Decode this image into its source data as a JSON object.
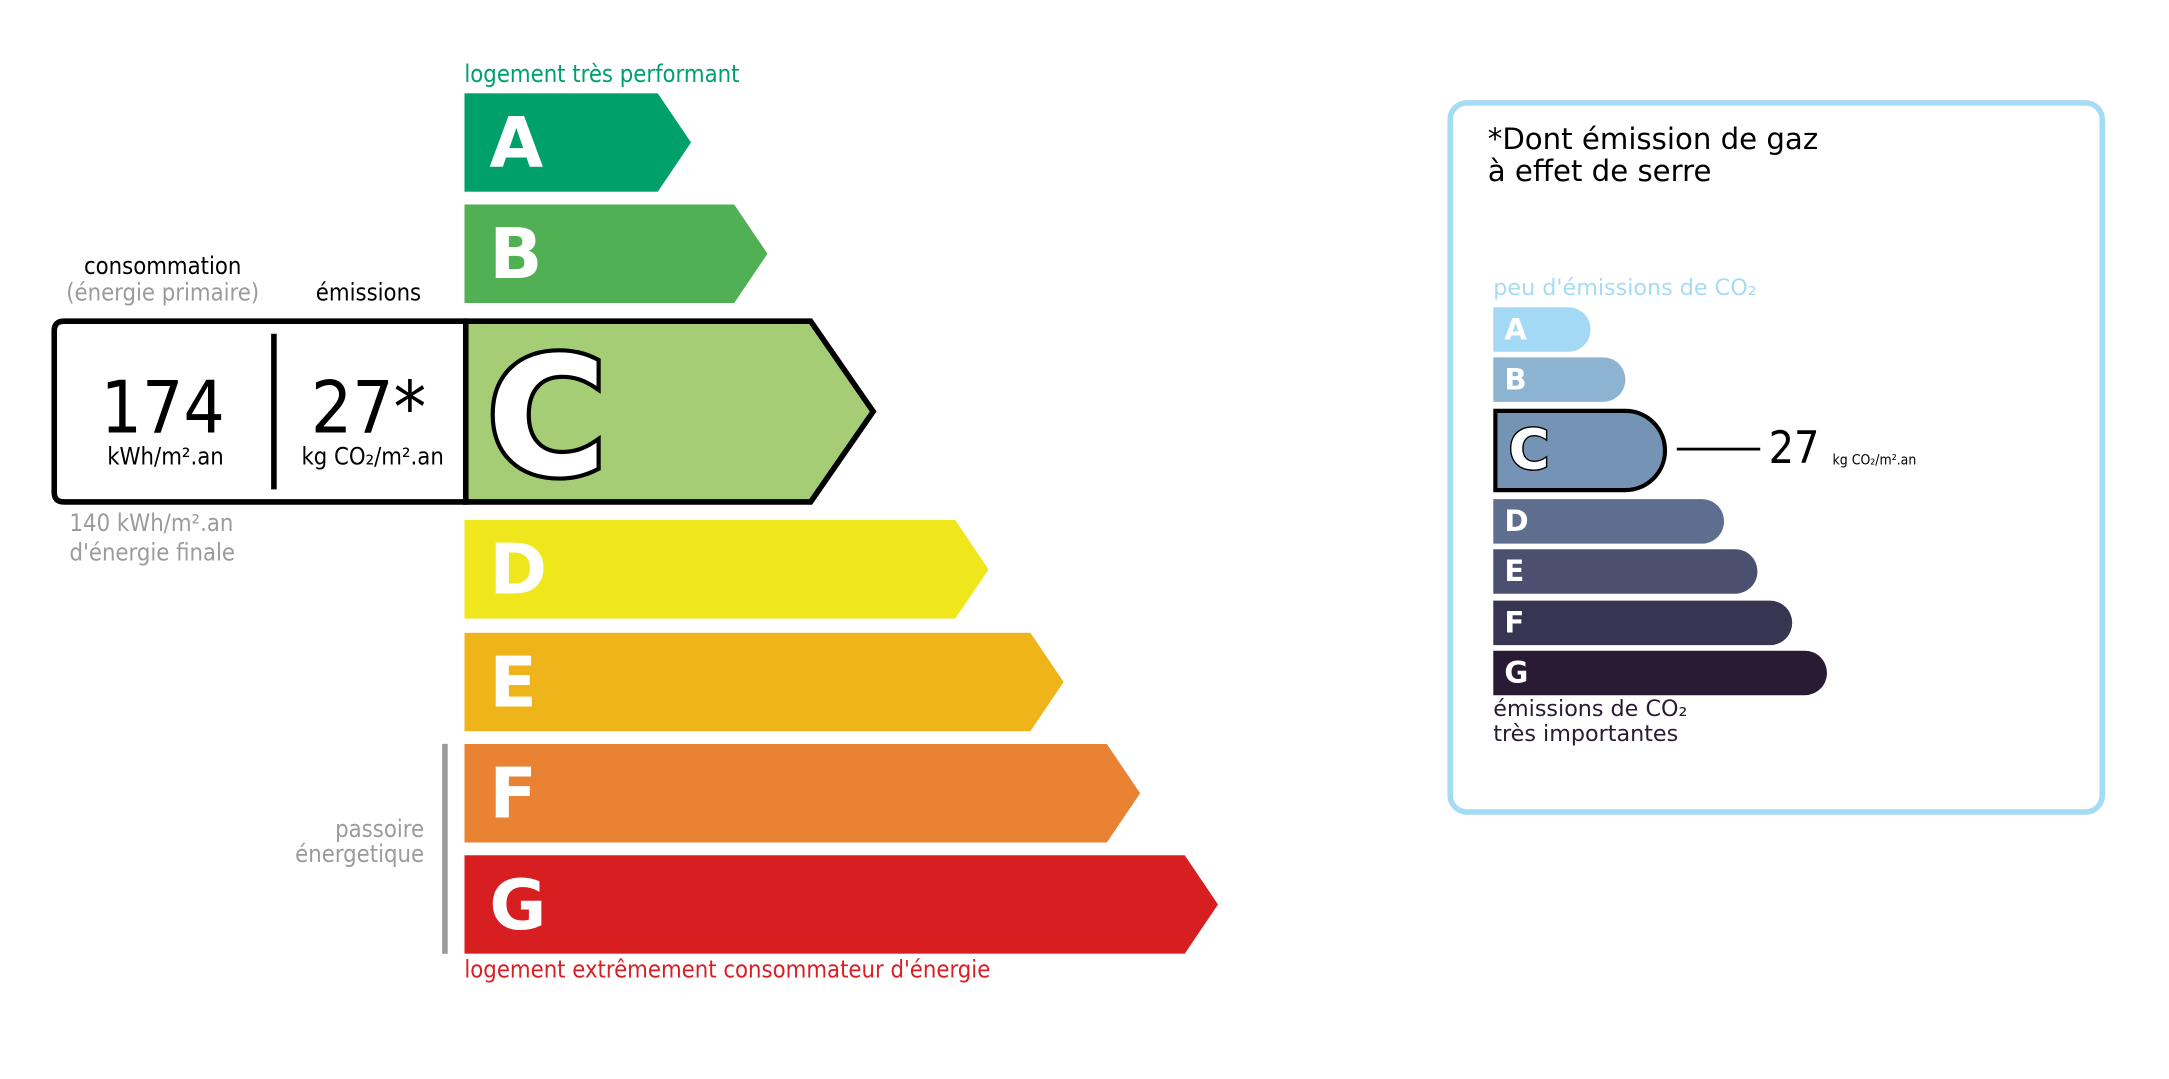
{
  "energy": {
    "top_label": "logement très performant",
    "bottom_label": "logement extrêmement consommateur d'énergie",
    "selected": "C",
    "classes": [
      {
        "letter": "A",
        "color": "#00a06b"
      },
      {
        "letter": "B",
        "color": "#51b054"
      },
      {
        "letter": "C",
        "color": "#a5cd75"
      },
      {
        "letter": "D",
        "color": "#f0e61c"
      },
      {
        "letter": "E",
        "color": "#efb41a"
      },
      {
        "letter": "F",
        "color": "#ea8234"
      },
      {
        "letter": "G",
        "color": "#d71f21"
      }
    ],
    "consumption_label": "consommation",
    "consumption_sublabel": "(énergie primaire)",
    "emissions_label": "émissions",
    "consumption_value": "174",
    "consumption_unit": "kWh/m².an",
    "emissions_value": "27*",
    "emissions_unit": "kg CO₂/m².an",
    "final_energy_value": "140 kWh/m².an",
    "final_energy_label": "d'énergie finale",
    "passoire_line1": "passoire",
    "passoire_line2": "énergetique"
  },
  "ghg": {
    "title_line1": "*Dont émission de gaz",
    "title_line2": "à effet de serre",
    "top_label": "peu d'émissions de CO₂",
    "bottom_line1": "émissions de CO₂",
    "bottom_line2": "très importantes",
    "selected": "C",
    "value": "27",
    "unit": "kg CO₂/m².an",
    "classes": [
      {
        "letter": "A",
        "color": "#a4d9f5"
      },
      {
        "letter": "B",
        "color": "#8db3d3"
      },
      {
        "letter": "C",
        "color": "#7593b4"
      },
      {
        "letter": "D",
        "color": "#5f6d8e"
      },
      {
        "letter": "E",
        "color": "#4c5070"
      },
      {
        "letter": "F",
        "color": "#373551"
      },
      {
        "letter": "G",
        "color": "#291b34"
      }
    ],
    "border_color": "#a6dbf6"
  }
}
